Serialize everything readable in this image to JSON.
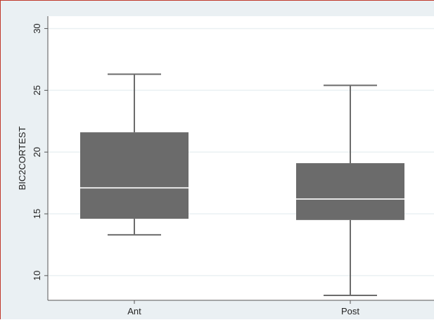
{
  "chart_data": {
    "type": "box",
    "ylabel": "BIC2CORTEST",
    "xlabel": "",
    "ylim": [
      8.0,
      31.0
    ],
    "yticks": [
      10,
      15,
      20,
      25,
      30
    ],
    "grid": true,
    "colors": {
      "box": "#6b6b6b",
      "median": "#e6e6e6",
      "whisker": "#6b6b6b",
      "grid": "#eaf0f3",
      "plot_bg": "#ffffff",
      "outer_bg": "#eaf0f3",
      "axis": "#555555"
    },
    "categories": [
      "Ant",
      "Post"
    ],
    "boxes": [
      {
        "category": "Ant",
        "min": 13.3,
        "q1": 14.6,
        "median": 17.1,
        "q3": 21.6,
        "max": 26.3
      },
      {
        "category": "Post",
        "min": 8.4,
        "q1": 14.5,
        "median": 16.2,
        "q3": 19.1,
        "max": 25.4
      }
    ]
  }
}
